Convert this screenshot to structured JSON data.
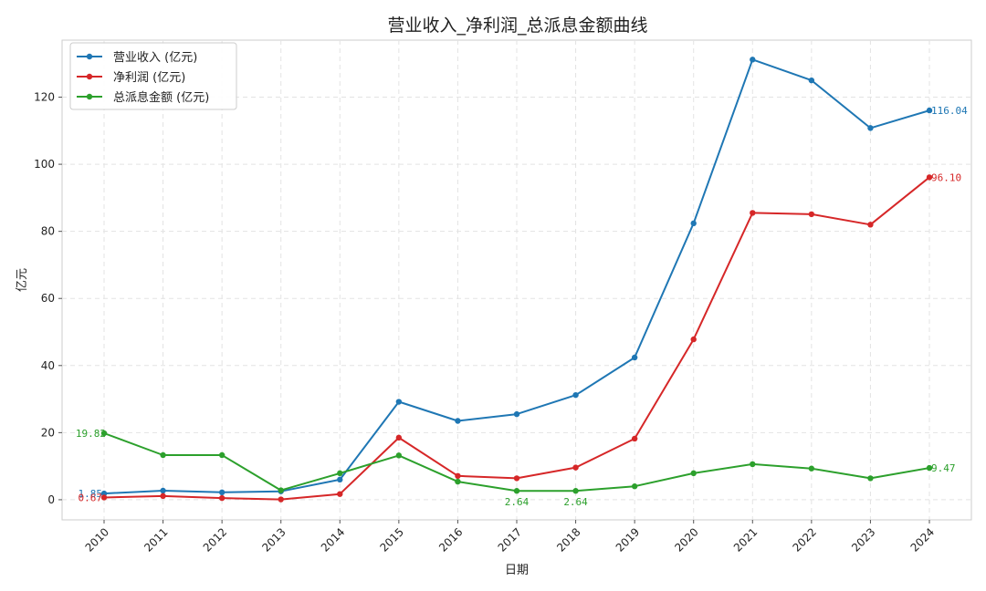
{
  "chart_data": {
    "type": "line",
    "title": "营业收入_净利润_总派息金额曲线",
    "xlabel": "日期",
    "ylabel": "亿元",
    "categories": [
      "2010",
      "2011",
      "2012",
      "2013",
      "2014",
      "2015",
      "2016",
      "2017",
      "2018",
      "2019",
      "2020",
      "2021",
      "2022",
      "2023",
      "2024"
    ],
    "ylim": [
      -6,
      137
    ],
    "yticks": [
      0,
      20,
      40,
      60,
      80,
      100,
      120
    ],
    "grid": true,
    "legend_position": "top-left",
    "series": [
      {
        "name": "营业收入 (亿元)",
        "color": "#1f77b4",
        "values": [
          1.85,
          2.7,
          2.2,
          2.5,
          6.0,
          29.2,
          23.5,
          25.5,
          31.2,
          42.4,
          82.4,
          131.2,
          125.0,
          110.8,
          116.04
        ]
      },
      {
        "name": "净利润 (亿元)",
        "color": "#d62728",
        "values": [
          0.67,
          1.1,
          0.5,
          0.1,
          1.7,
          18.5,
          7.1,
          6.4,
          9.6,
          18.2,
          47.8,
          85.5,
          85.1,
          82.0,
          96.1
        ]
      },
      {
        "name": "总派息金额 (亿元)",
        "color": "#2ca02c",
        "values": [
          19.82,
          13.3,
          13.3,
          2.8,
          7.9,
          13.2,
          5.4,
          2.64,
          2.64,
          4.0,
          7.9,
          10.6,
          9.3,
          6.4,
          9.47
        ]
      }
    ],
    "annotations": [
      {
        "series": 0,
        "index": 0,
        "text": "1.85",
        "anchor": "end",
        "dx": -2,
        "dy": 4
      },
      {
        "series": 1,
        "index": 0,
        "text": "0.67",
        "anchor": "end",
        "dx": -2,
        "dy": 4
      },
      {
        "series": 2,
        "index": 0,
        "text": "19.82",
        "anchor": "end",
        "dx": 2,
        "dy": 4
      },
      {
        "series": 2,
        "index": 7,
        "text": "2.64",
        "anchor": "middle",
        "dx": 0,
        "dy": 16
      },
      {
        "series": 2,
        "index": 8,
        "text": "2.64",
        "anchor": "middle",
        "dx": 0,
        "dy": 16
      },
      {
        "series": 0,
        "index": 14,
        "text": "116.04",
        "anchor": "start",
        "dx": 2,
        "dy": 4
      },
      {
        "series": 1,
        "index": 14,
        "text": "96.10",
        "anchor": "start",
        "dx": 2,
        "dy": 4
      },
      {
        "series": 2,
        "index": 14,
        "text": "9.47",
        "anchor": "start",
        "dx": 2,
        "dy": 4
      }
    ]
  }
}
